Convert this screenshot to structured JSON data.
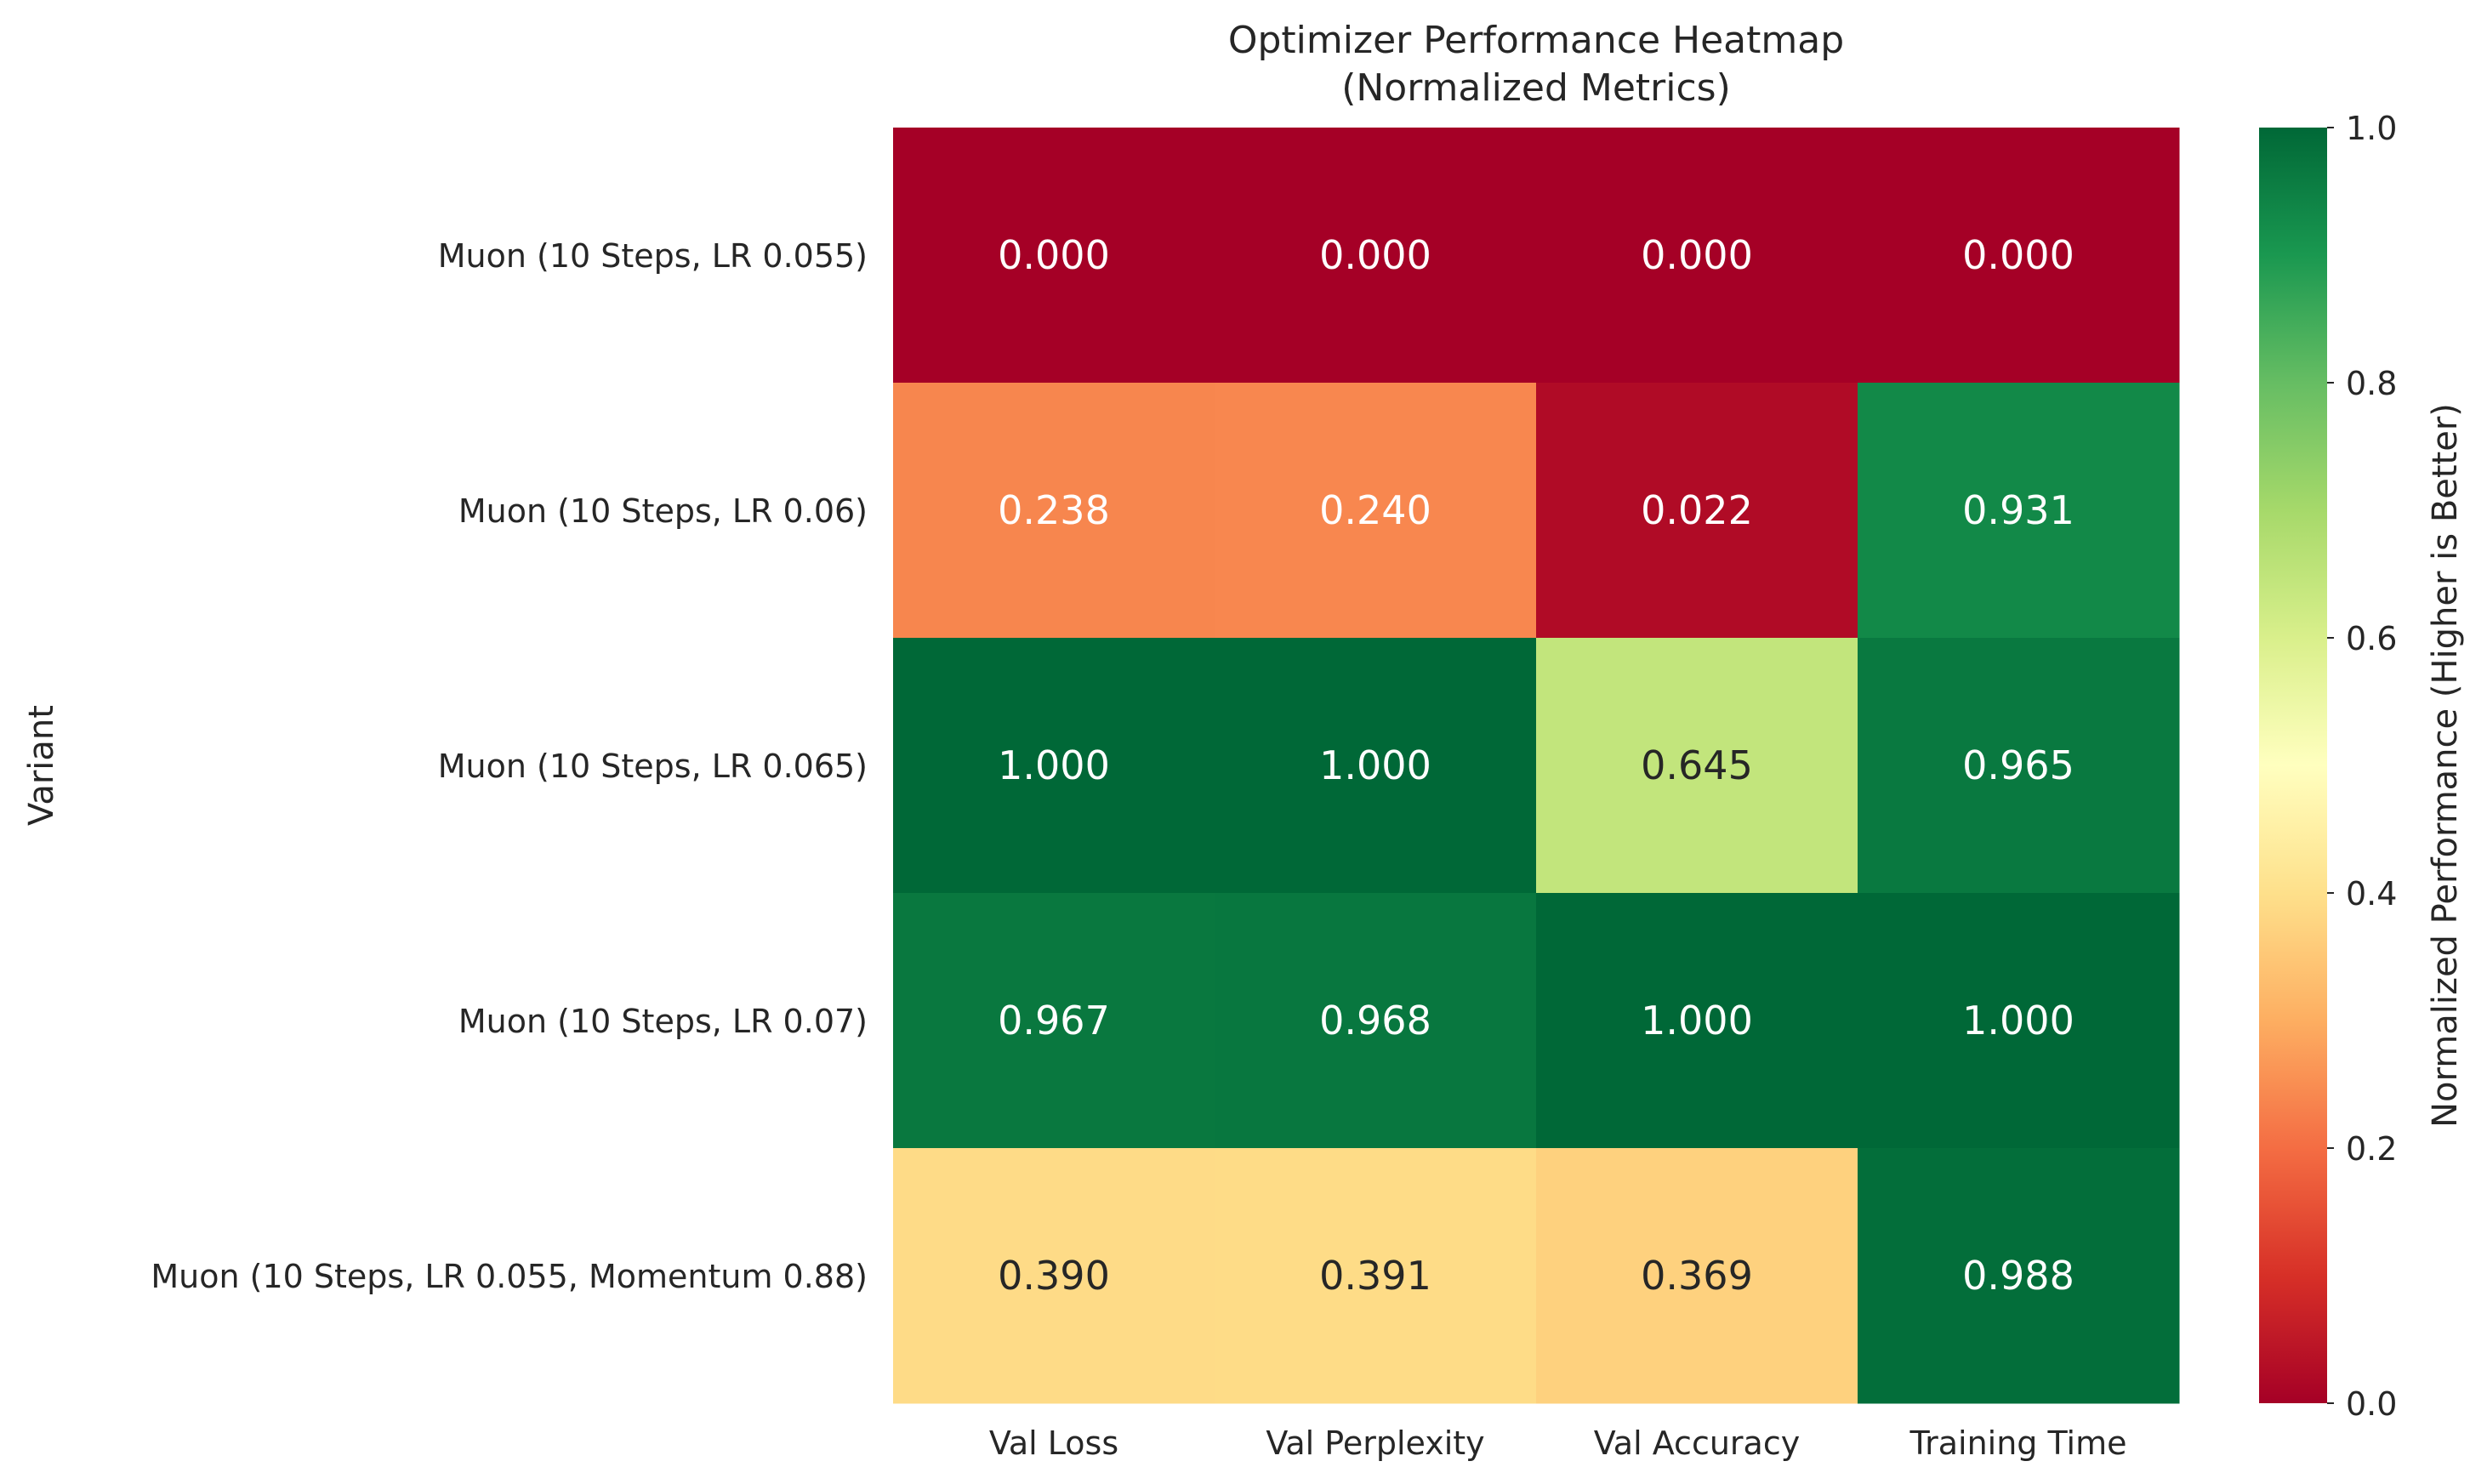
{
  "chart_data": {
    "type": "heatmap",
    "title": "Optimizer Performance Heatmap",
    "subtitle": "(Normalized Metrics)",
    "ylabel": "Variant",
    "xlabel": "",
    "x_categories": [
      "Val Loss",
      "Val Perplexity",
      "Val Accuracy",
      "Training Time"
    ],
    "y_categories": [
      "Muon (10 Steps, LR 0.055)",
      "Muon (10 Steps, LR 0.06)",
      "Muon (10 Steps, LR 0.065)",
      "Muon (10 Steps, LR 0.07)",
      "Muon (10 Steps, LR 0.055, Momentum 0.88)"
    ],
    "values": [
      [
        0.0,
        0.0,
        0.0,
        0.0
      ],
      [
        0.238,
        0.24,
        0.022,
        0.931
      ],
      [
        1.0,
        1.0,
        0.645,
        0.965
      ],
      [
        0.967,
        0.968,
        1.0,
        1.0
      ],
      [
        0.39,
        0.391,
        0.369,
        0.988
      ]
    ],
    "value_labels": [
      [
        "0.000",
        "0.000",
        "0.000",
        "0.000"
      ],
      [
        "0.238",
        "0.240",
        "0.022",
        "0.931"
      ],
      [
        "1.000",
        "1.000",
        "0.645",
        "0.965"
      ],
      [
        "0.967",
        "0.968",
        "1.000",
        "1.000"
      ],
      [
        "0.390",
        "0.391",
        "0.369",
        "0.988"
      ]
    ],
    "colormap": "RdYlGn",
    "vmin": 0,
    "vmax": 1,
    "colorbar": {
      "label": "Normalized Performance (Higher is Better)",
      "ticks": [
        0.0,
        0.2,
        0.4,
        0.6,
        0.8,
        1.0
      ],
      "tick_labels": [
        "0.0",
        "0.2",
        "0.4",
        "0.6",
        "0.8",
        "1.0"
      ],
      "placement": "right"
    },
    "grid": false
  }
}
